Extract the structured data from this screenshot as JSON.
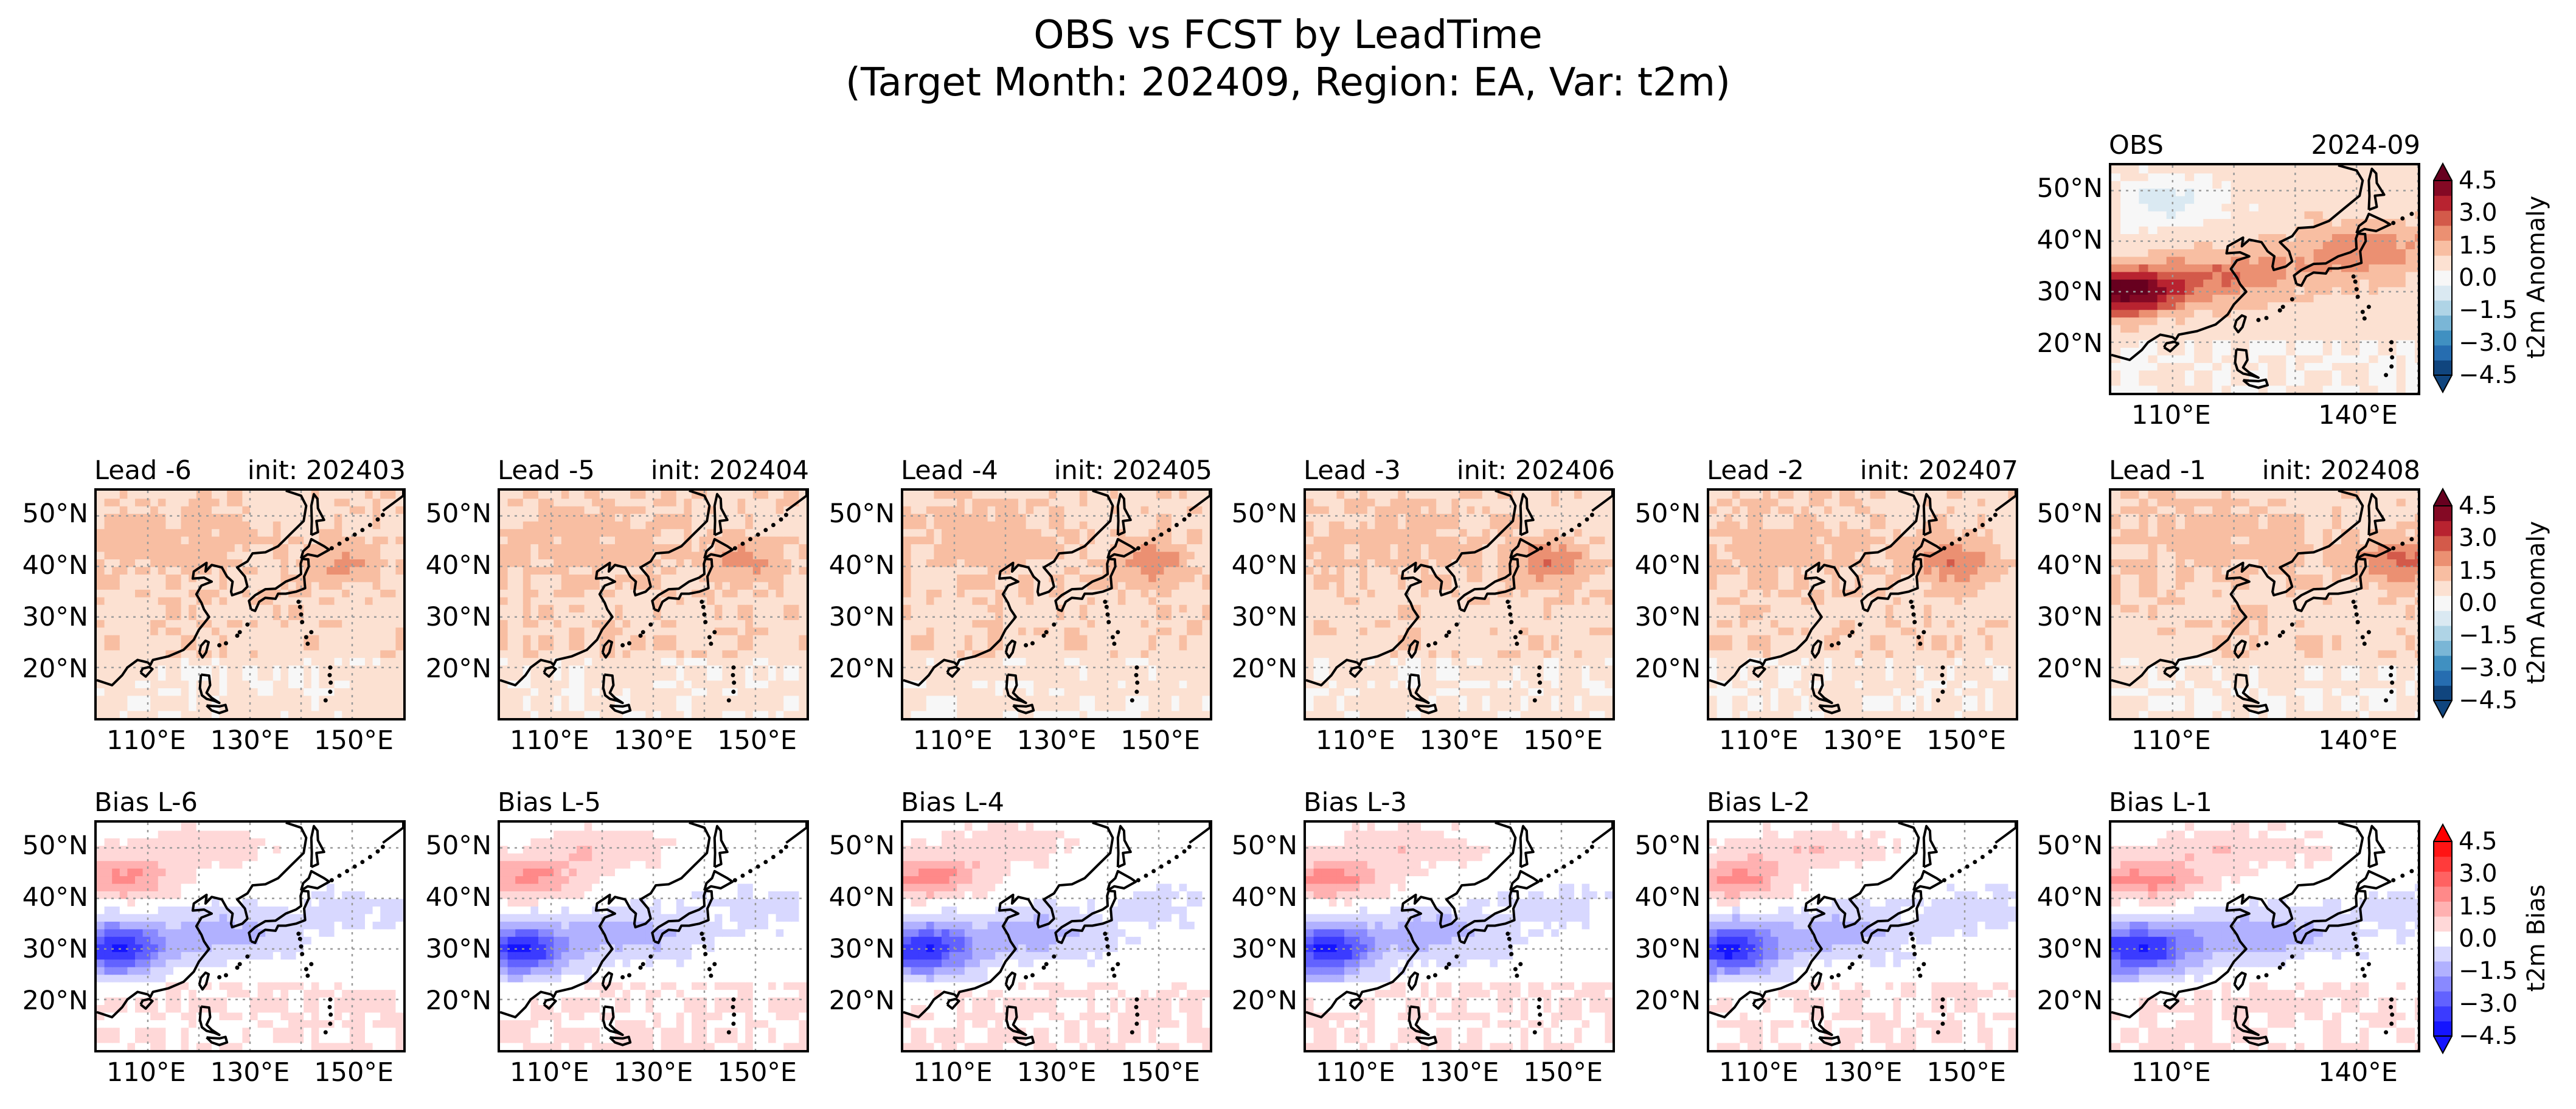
{
  "title_line1": "OBS vs FCST by LeadTime",
  "title_line2": "(Target Month: 202409, Region: EA, Var: t2m)",
  "colorbars": {
    "anomaly": {
      "label": "t2m Anomaly",
      "cmap": "RdBu_r",
      "ticks": [
        "4.5",
        "3.0",
        "1.5",
        "0.0",
        "−1.5",
        "−3.0",
        "−4.5"
      ]
    },
    "bias": {
      "label": "t2m Bias",
      "cmap": "bwr",
      "ticks": [
        "4.5",
        "3.0",
        "1.5",
        "0.0",
        "−1.5",
        "−3.0",
        "−4.5"
      ]
    }
  },
  "obs_panel": {
    "left": "OBS",
    "right": "2024-09",
    "yticks": [
      "50°N",
      "40°N",
      "30°N",
      "20°N"
    ],
    "xticks": [
      "110°E",
      "140°E"
    ]
  },
  "lead_panels": [
    {
      "left": "Lead -6",
      "right": "init: 202403"
    },
    {
      "left": "Lead -5",
      "right": "init: 202404"
    },
    {
      "left": "Lead -4",
      "right": "init: 202405"
    },
    {
      "left": "Lead -3",
      "right": "init: 202406"
    },
    {
      "left": "Lead -2",
      "right": "init: 202407"
    },
    {
      "left": "Lead -1",
      "right": "init: 202408"
    }
  ],
  "bias_panels": [
    {
      "left": "Bias L-6"
    },
    {
      "left": "Bias L-5"
    },
    {
      "left": "Bias L-4"
    },
    {
      "left": "Bias L-3"
    },
    {
      "left": "Bias L-2"
    },
    {
      "left": "Bias L-1"
    }
  ],
  "yticks": [
    "50°N",
    "40°N",
    "30°N",
    "20°N"
  ],
  "xticks_3": [
    "110°E",
    "130°E",
    "150°E"
  ],
  "xticks_2": [
    "110°E",
    "140°E"
  ],
  "chart_data": {
    "type": "heatmap",
    "region": "EA",
    "variable": "t2m",
    "target_month": "202409",
    "lon_range": [
      100,
      160
    ],
    "lat_range": [
      10,
      55
    ],
    "color_range": [
      -4.5,
      4.5
    ],
    "panels": [
      {
        "name": "OBS",
        "kind": "anomaly",
        "month": "2024-09"
      },
      {
        "name": "Lead -6",
        "kind": "forecast anomaly",
        "init": "202403"
      },
      {
        "name": "Lead -5",
        "kind": "forecast anomaly",
        "init": "202404"
      },
      {
        "name": "Lead -4",
        "kind": "forecast anomaly",
        "init": "202405"
      },
      {
        "name": "Lead -3",
        "kind": "forecast anomaly",
        "init": "202406"
      },
      {
        "name": "Lead -2",
        "kind": "forecast anomaly",
        "init": "202407"
      },
      {
        "name": "Lead -1",
        "kind": "forecast anomaly",
        "init": "202408"
      },
      {
        "name": "Bias L-6",
        "kind": "bias"
      },
      {
        "name": "Bias L-5",
        "kind": "bias"
      },
      {
        "name": "Bias L-4",
        "kind": "bias"
      },
      {
        "name": "Bias L-3",
        "kind": "bias"
      },
      {
        "name": "Bias L-2",
        "kind": "bias"
      },
      {
        "name": "Bias L-1",
        "kind": "bias"
      }
    ],
    "grid": true
  }
}
